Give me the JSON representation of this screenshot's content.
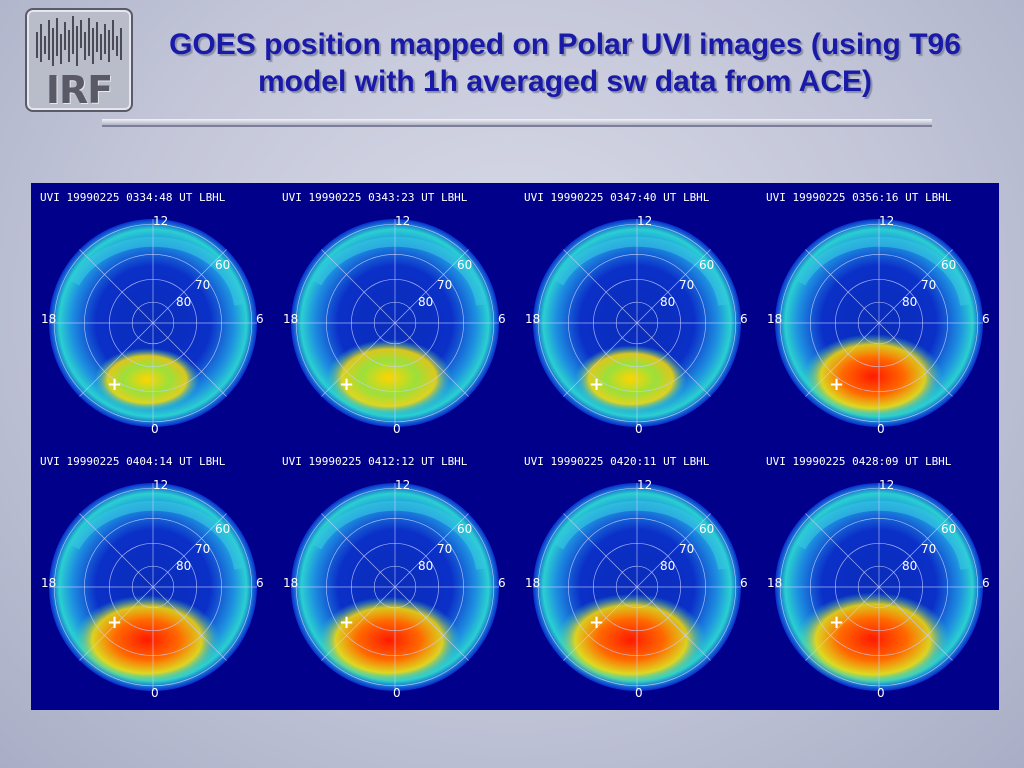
{
  "logo": {
    "text": "IRF"
  },
  "title": "GOES position mapped on Polar UVI images (using T96 model with 1h averaged sw data from ACE)",
  "grid_labels": {
    "top": "12",
    "left": "18",
    "right": "6",
    "bottom": "0",
    "lat60": "60",
    "lat70": "70",
    "lat80": "80"
  },
  "colors": {
    "background": "#c3c6d8",
    "panel": "#00008b",
    "title": "#1a1aa8",
    "low": "#0a2cd0",
    "mid": "#2fc6d8",
    "high": "#ff2000"
  },
  "panels": [
    {
      "caption": "UVI 19990225 0334:48 UT LBHL",
      "intensity": 0.25,
      "goes_marker": "+"
    },
    {
      "caption": "UVI 19990225 0343:23 UT LBHL",
      "intensity": 0.55,
      "goes_marker": "+"
    },
    {
      "caption": "UVI 19990225 0347:40 UT LBHL",
      "intensity": 0.35,
      "goes_marker": "+"
    },
    {
      "caption": "UVI 19990225 0356:16 UT LBHL",
      "intensity": 0.75,
      "goes_marker": "+"
    },
    {
      "caption": "UVI 19990225 0404:14 UT LBHL",
      "intensity": 0.85,
      "goes_marker": "+"
    },
    {
      "caption": "UVI 19990225 0412:12 UT LBHL",
      "intensity": 0.8,
      "goes_marker": "+"
    },
    {
      "caption": "UVI 19990225 0420:11 UT LBHL",
      "intensity": 0.9,
      "goes_marker": "+"
    },
    {
      "caption": "UVI 19990225 0428:09 UT LBHL",
      "intensity": 0.95,
      "goes_marker": "+"
    }
  ]
}
